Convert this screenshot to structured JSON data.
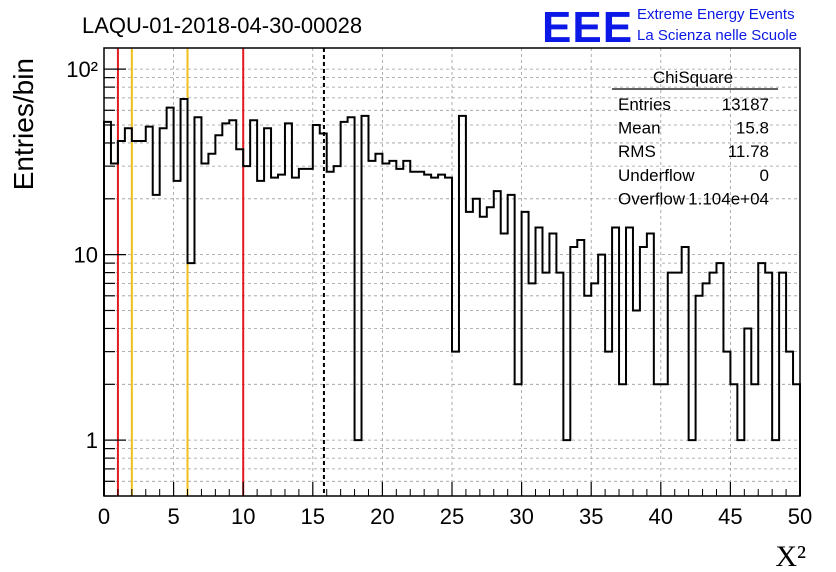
{
  "chart_data": {
    "type": "histogram",
    "title": "LAQU-01-2018-04-30-00028",
    "xlabel": "X²",
    "ylabel": "Entries/bin",
    "xlim": [
      0,
      50
    ],
    "ylim": [
      0.5,
      130
    ],
    "yscale": "log",
    "grid": true,
    "bin_width": 0.5,
    "xticks": [
      0,
      5,
      10,
      15,
      20,
      25,
      30,
      35,
      40,
      45,
      50
    ],
    "yticks": [
      {
        "value": 1,
        "label": "1"
      },
      {
        "value": 10,
        "label": "10"
      },
      {
        "value": 100,
        "label": "10²"
      }
    ],
    "bin_values": [
      52,
      31,
      41,
      48,
      41,
      41,
      49,
      21,
      48,
      62,
      25,
      69,
      9,
      55,
      31,
      35,
      44,
      51,
      53,
      37,
      30,
      53,
      25,
      48,
      26,
      27,
      51,
      26,
      29,
      29,
      50,
      45,
      28,
      30,
      52,
      55,
      1,
      56,
      32,
      35,
      31,
      32,
      29,
      32,
      28,
      28,
      27,
      26,
      27,
      26,
      3,
      56,
      17,
      20,
      16,
      18,
      22,
      13,
      21,
      2,
      17,
      7,
      14,
      8,
      13,
      8,
      1,
      11,
      12,
      6,
      7,
      10,
      3,
      14,
      2,
      14,
      5,
      11,
      13,
      2,
      2,
      8,
      8,
      11,
      1,
      6,
      7,
      8,
      9,
      3,
      2,
      1,
      4,
      2,
      9,
      8,
      1,
      8,
      3,
      2
    ],
    "vertical_lines": [
      {
        "x": 1,
        "color": "#e31a1c",
        "style": "solid"
      },
      {
        "x": 2,
        "color": "#f0c018",
        "style": "solid"
      },
      {
        "x": 6,
        "color": "#f0c018",
        "style": "solid"
      },
      {
        "x": 10,
        "color": "#e31a1c",
        "style": "solid"
      },
      {
        "x": 15.8,
        "color": "#000000",
        "style": "dashed"
      }
    ],
    "stats_box": {
      "title": "ChiSquare",
      "rows": [
        {
          "label": "Entries",
          "value": "13187"
        },
        {
          "label": "Mean",
          "value": "15.8"
        },
        {
          "label": "RMS",
          "value": "11.78"
        },
        {
          "label": "Underflow",
          "value": "0"
        },
        {
          "label": "Overflow",
          "value": "1.104e+04"
        }
      ]
    }
  },
  "logo": {
    "text": "EEE",
    "line1": "Extreme Energy Events",
    "line2": "La Scienza nelle Scuole",
    "color": "#0b18e6"
  }
}
